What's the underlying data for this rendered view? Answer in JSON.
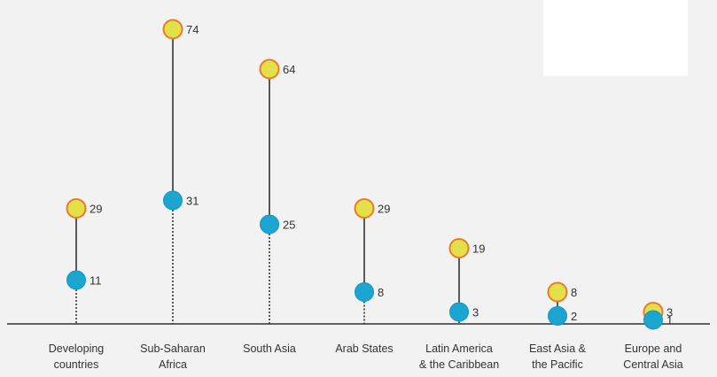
{
  "chart_data": {
    "type": "dot-stem",
    "categories": [
      [
        "Developing",
        "countries"
      ],
      [
        "Sub-Saharan",
        "Africa"
      ],
      [
        "South Asia"
      ],
      [
        "Arab States"
      ],
      [
        "Latin America",
        "& the Caribbean"
      ],
      [
        "East Asia &",
        "the Pacific"
      ],
      [
        "Europe and",
        "Central Asia"
      ]
    ],
    "series": [
      {
        "values": [
          29,
          74,
          64,
          29,
          19,
          8,
          3
        ],
        "color": "#e3e04a",
        "stroke": "#ec7a2a"
      },
      {
        "values": [
          11,
          31,
          25,
          8,
          3,
          2,
          1
        ],
        "color": "#1aa6d1",
        "stroke": "#1aa6d1"
      }
    ],
    "ylim": [
      0,
      80
    ],
    "grid": false,
    "legend": "none"
  }
}
